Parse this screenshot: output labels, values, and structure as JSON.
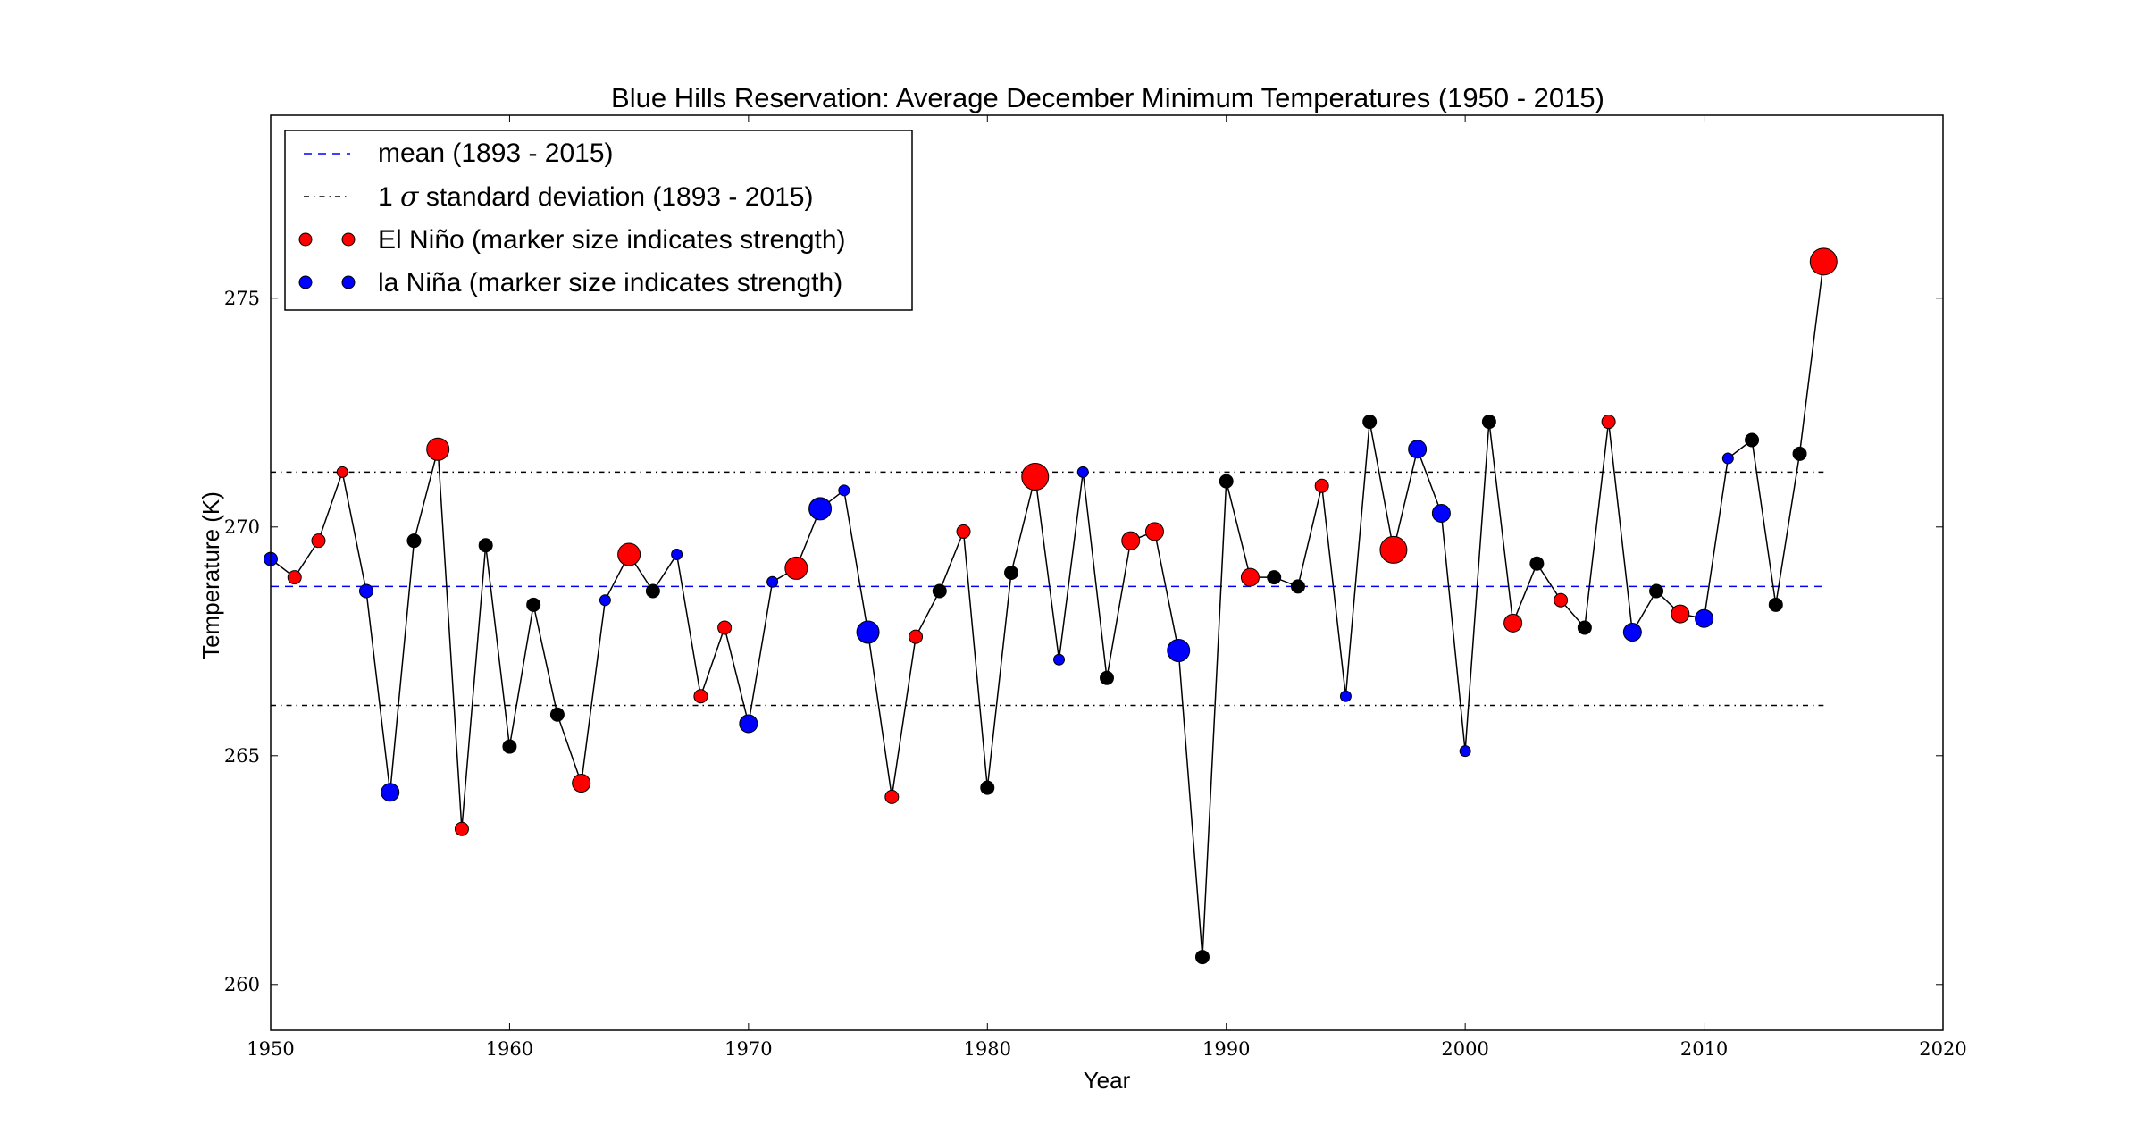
{
  "chart_data": {
    "type": "scatter",
    "title": "Blue Hills Reservation: Average December Minimum Temperatures (1950 - 2015)",
    "xlabel": "Year",
    "ylabel": "Temperature (K)",
    "xlim": [
      1950,
      2020
    ],
    "ylim": [
      259,
      279
    ],
    "xticks": [
      "1950",
      "1960",
      "1970",
      "1980",
      "1990",
      "2000",
      "2010",
      "2020"
    ],
    "yticks": [
      "260",
      "265",
      "270",
      "275"
    ],
    "grid": false,
    "legend_position": "top-left",
    "legend": [
      {
        "label": "mean (1893 - 2015)",
        "style": "dashed",
        "color": "#0000ff"
      },
      {
        "label_prefix": "1 ",
        "label_symbol": "σ",
        "label_suffix": " standard deviation (1893 - 2015)",
        "style": "dashdot",
        "color": "#000000"
      },
      {
        "label": "El Niño (marker size indicates strength)",
        "style": "marker",
        "color": "#ff0000"
      },
      {
        "label": "la Niña (marker size indicates strength)",
        "style": "marker",
        "color": "#0000ff"
      }
    ],
    "reference_lines": {
      "mean": 268.7,
      "std_upper": 271.2,
      "std_lower": 266.1,
      "x_range": [
        1950,
        2015
      ]
    },
    "colors": {
      "el_nino": "#ff0000",
      "la_nina": "#0000ff",
      "neutral": "#000000",
      "line": "#000000"
    },
    "points": [
      {
        "year": 1950,
        "temp": 269.3,
        "enso": "la_nina",
        "strength": 2
      },
      {
        "year": 1951,
        "temp": 268.9,
        "enso": "el_nino",
        "strength": 2
      },
      {
        "year": 1952,
        "temp": 269.7,
        "enso": "el_nino",
        "strength": 2
      },
      {
        "year": 1953,
        "temp": 271.2,
        "enso": "el_nino",
        "strength": 1
      },
      {
        "year": 1954,
        "temp": 268.6,
        "enso": "la_nina",
        "strength": 2
      },
      {
        "year": 1955,
        "temp": 264.2,
        "enso": "la_nina",
        "strength": 3
      },
      {
        "year": 1956,
        "temp": 269.7,
        "enso": "neutral",
        "strength": 2
      },
      {
        "year": 1957,
        "temp": 271.7,
        "enso": "el_nino",
        "strength": 4
      },
      {
        "year": 1958,
        "temp": 263.4,
        "enso": "el_nino",
        "strength": 2
      },
      {
        "year": 1959,
        "temp": 269.6,
        "enso": "neutral",
        "strength": 2
      },
      {
        "year": 1960,
        "temp": 265.2,
        "enso": "neutral",
        "strength": 2
      },
      {
        "year": 1961,
        "temp": 268.3,
        "enso": "neutral",
        "strength": 2
      },
      {
        "year": 1962,
        "temp": 265.9,
        "enso": "neutral",
        "strength": 2
      },
      {
        "year": 1963,
        "temp": 264.4,
        "enso": "el_nino",
        "strength": 3
      },
      {
        "year": 1964,
        "temp": 268.4,
        "enso": "la_nina",
        "strength": 1
      },
      {
        "year": 1965,
        "temp": 269.4,
        "enso": "el_nino",
        "strength": 4
      },
      {
        "year": 1966,
        "temp": 268.6,
        "enso": "neutral",
        "strength": 2
      },
      {
        "year": 1967,
        "temp": 269.4,
        "enso": "la_nina",
        "strength": 1
      },
      {
        "year": 1968,
        "temp": 266.3,
        "enso": "el_nino",
        "strength": 2
      },
      {
        "year": 1969,
        "temp": 267.8,
        "enso": "el_nino",
        "strength": 2
      },
      {
        "year": 1970,
        "temp": 265.7,
        "enso": "la_nina",
        "strength": 3
      },
      {
        "year": 1971,
        "temp": 268.8,
        "enso": "la_nina",
        "strength": 1
      },
      {
        "year": 1972,
        "temp": 269.1,
        "enso": "el_nino",
        "strength": 4
      },
      {
        "year": 1973,
        "temp": 270.4,
        "enso": "la_nina",
        "strength": 4
      },
      {
        "year": 1974,
        "temp": 270.8,
        "enso": "la_nina",
        "strength": 1
      },
      {
        "year": 1975,
        "temp": 267.7,
        "enso": "la_nina",
        "strength": 4
      },
      {
        "year": 1976,
        "temp": 264.1,
        "enso": "el_nino",
        "strength": 2
      },
      {
        "year": 1977,
        "temp": 267.6,
        "enso": "el_nino",
        "strength": 2
      },
      {
        "year": 1978,
        "temp": 268.6,
        "enso": "neutral",
        "strength": 2
      },
      {
        "year": 1979,
        "temp": 269.9,
        "enso": "el_nino",
        "strength": 2
      },
      {
        "year": 1980,
        "temp": 264.3,
        "enso": "neutral",
        "strength": 2
      },
      {
        "year": 1981,
        "temp": 269.0,
        "enso": "neutral",
        "strength": 2
      },
      {
        "year": 1982,
        "temp": 271.1,
        "enso": "el_nino",
        "strength": 5
      },
      {
        "year": 1983,
        "temp": 267.1,
        "enso": "la_nina",
        "strength": 1
      },
      {
        "year": 1984,
        "temp": 271.2,
        "enso": "la_nina",
        "strength": 1
      },
      {
        "year": 1985,
        "temp": 266.7,
        "enso": "neutral",
        "strength": 2
      },
      {
        "year": 1986,
        "temp": 269.7,
        "enso": "el_nino",
        "strength": 3
      },
      {
        "year": 1987,
        "temp": 269.9,
        "enso": "el_nino",
        "strength": 3
      },
      {
        "year": 1988,
        "temp": 267.3,
        "enso": "la_nina",
        "strength": 4
      },
      {
        "year": 1989,
        "temp": 260.6,
        "enso": "neutral",
        "strength": 2
      },
      {
        "year": 1990,
        "temp": 271.0,
        "enso": "neutral",
        "strength": 2
      },
      {
        "year": 1991,
        "temp": 268.9,
        "enso": "el_nino",
        "strength": 3
      },
      {
        "year": 1992,
        "temp": 268.9,
        "enso": "neutral",
        "strength": 2
      },
      {
        "year": 1993,
        "temp": 268.7,
        "enso": "neutral",
        "strength": 2
      },
      {
        "year": 1994,
        "temp": 270.9,
        "enso": "el_nino",
        "strength": 2
      },
      {
        "year": 1995,
        "temp": 266.3,
        "enso": "la_nina",
        "strength": 1
      },
      {
        "year": 1996,
        "temp": 272.3,
        "enso": "neutral",
        "strength": 2
      },
      {
        "year": 1997,
        "temp": 269.5,
        "enso": "el_nino",
        "strength": 5
      },
      {
        "year": 1998,
        "temp": 271.7,
        "enso": "la_nina",
        "strength": 3
      },
      {
        "year": 1999,
        "temp": 270.3,
        "enso": "la_nina",
        "strength": 3
      },
      {
        "year": 2000,
        "temp": 265.1,
        "enso": "la_nina",
        "strength": 1
      },
      {
        "year": 2001,
        "temp": 272.3,
        "enso": "neutral",
        "strength": 2
      },
      {
        "year": 2002,
        "temp": 267.9,
        "enso": "el_nino",
        "strength": 3
      },
      {
        "year": 2003,
        "temp": 269.2,
        "enso": "neutral",
        "strength": 2
      },
      {
        "year": 2004,
        "temp": 268.4,
        "enso": "el_nino",
        "strength": 2
      },
      {
        "year": 2005,
        "temp": 267.8,
        "enso": "neutral",
        "strength": 2
      },
      {
        "year": 2006,
        "temp": 272.3,
        "enso": "el_nino",
        "strength": 2
      },
      {
        "year": 2007,
        "temp": 267.7,
        "enso": "la_nina",
        "strength": 3
      },
      {
        "year": 2008,
        "temp": 268.6,
        "enso": "neutral",
        "strength": 2
      },
      {
        "year": 2009,
        "temp": 268.1,
        "enso": "el_nino",
        "strength": 3
      },
      {
        "year": 2010,
        "temp": 268.0,
        "enso": "la_nina",
        "strength": 3
      },
      {
        "year": 2011,
        "temp": 271.5,
        "enso": "la_nina",
        "strength": 1
      },
      {
        "year": 2012,
        "temp": 271.9,
        "enso": "neutral",
        "strength": 2
      },
      {
        "year": 2013,
        "temp": 268.3,
        "enso": "neutral",
        "strength": 2
      },
      {
        "year": 2014,
        "temp": 271.6,
        "enso": "neutral",
        "strength": 2
      },
      {
        "year": 2015,
        "temp": 275.8,
        "enso": "el_nino",
        "strength": 5
      }
    ]
  }
}
